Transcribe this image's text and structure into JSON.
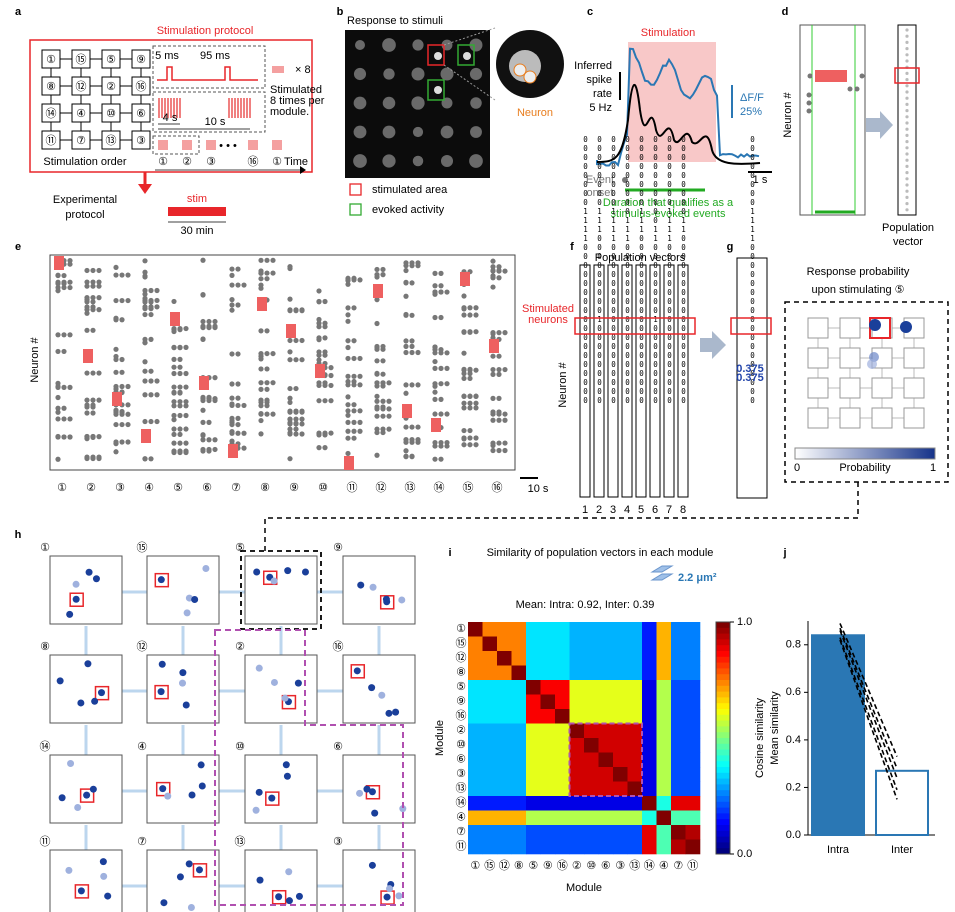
{
  "panel_a": {
    "label": "a",
    "title": "Stimulation protocol",
    "grid": [
      "①",
      "⑮",
      "⑤",
      "⑨",
      "⑧",
      "⑫",
      "②",
      "⑯",
      "⑭",
      "④",
      "⑩",
      "⑥",
      "⑪",
      "⑦",
      "⑬",
      "③"
    ],
    "pulse_width": "5 ms",
    "pulse_gap": "95 ms",
    "repeat": "× 8",
    "repeat_note": [
      "Stimulated",
      "8 times per",
      "module."
    ],
    "train_gap": "4 s",
    "train_period": "10 s",
    "order_label": "Stimulation order",
    "sequence": [
      "①",
      "②",
      "③",
      "⑯",
      "①"
    ],
    "time": "Time",
    "experimental": [
      "Experimental",
      "protocol"
    ],
    "stim": "stim",
    "duration": "30 min"
  },
  "panel_b": {
    "label": "b",
    "title": "Response to stimuli",
    "neuron": "Neuron",
    "legend": [
      "stimulated area",
      "evoked activity"
    ]
  },
  "panel_c": {
    "label": "c",
    "title": "Stimulation",
    "spike_label": [
      "Inferred",
      "spike",
      "rate",
      "5 Hz"
    ],
    "dff_label": [
      "ΔF/F",
      "25%"
    ],
    "time_bar": "1 s",
    "onset": [
      "Event",
      "onset"
    ],
    "duration_note": [
      "Duration that qualifies as a",
      "stimulus-evoked events"
    ]
  },
  "panel_d": {
    "label": "d",
    "ylabel": "Neuron #",
    "vector_label": [
      "Population",
      "vector"
    ]
  },
  "panel_e": {
    "label": "e",
    "ylabel": "Neuron #",
    "modules": [
      "①",
      "②",
      "③",
      "④",
      "⑤",
      "⑥",
      "⑦",
      "⑧",
      "⑨",
      "⑩",
      "⑪",
      "⑫",
      "⑬",
      "⑭",
      "⑮",
      "⑯"
    ],
    "time_bar": "10 s"
  },
  "panel_f": {
    "label": "f",
    "title": "Population vectors",
    "stimulated": [
      "Stimulated",
      "neurons"
    ],
    "ylabel": "Neuron #",
    "vectors": [
      "000000001111000000000000000000",
      "000000001110000000001000000000",
      "000000001111000000000000000000",
      "000000000111000000000000000000",
      "000000001110000000000000000000",
      "000000000011000000001000000000",
      "000000001111000000000000000000",
      "000000000110000000000000000000"
    ],
    "columns": [
      "1",
      "2",
      "3",
      "4",
      "5",
      "6",
      "7",
      "8"
    ]
  },
  "panel_g": {
    "label": "g",
    "vector": "000000001111000000000000000000",
    "probabilities": [
      "0.375",
      "0.375"
    ],
    "title": [
      "Response probability",
      "upon stimulating ⑤"
    ],
    "colorbar": [
      "0",
      "Probability",
      "1"
    ]
  },
  "panel_h": {
    "label": "h",
    "modules": [
      "①",
      "⑮",
      "⑤",
      "⑨",
      "⑧",
      "⑫",
      "②",
      "⑯",
      "⑭",
      "④",
      "⑩",
      "⑥",
      "⑪",
      "⑦",
      "⑬",
      "③"
    ]
  },
  "panel_i": {
    "label": "i",
    "title": "Similarity of population vectors in each module",
    "area": "2.2 μm²",
    "mean": "Mean: Intra: 0.92, Inter: 0.39",
    "xlabel": "Module",
    "ylabel": "Module",
    "colorbar_label": "Cosine similarity",
    "colorbar_ticks": [
      {
        "value": 1,
        "label": "1.0"
      },
      {
        "value": 0,
        "label": "0.0"
      }
    ],
    "modules": [
      "①",
      "⑮",
      "⑫",
      "⑧",
      "⑤",
      "⑨",
      "⑯",
      "②",
      "⑩",
      "⑥",
      "③",
      "⑬",
      "⑭",
      "④",
      "⑦",
      "⑪"
    ],
    "matrix": [
      [
        1,
        0.75,
        0.75,
        0.75,
        0.35,
        0.35,
        0.35,
        0.3,
        0.3,
        0.3,
        0.3,
        0.3,
        0.15,
        0.7,
        0.25,
        0.25
      ],
      [
        0.75,
        1,
        0.75,
        0.75,
        0.35,
        0.35,
        0.35,
        0.3,
        0.3,
        0.3,
        0.3,
        0.3,
        0.15,
        0.7,
        0.25,
        0.25
      ],
      [
        0.75,
        0.75,
        1,
        0.75,
        0.35,
        0.35,
        0.35,
        0.3,
        0.3,
        0.3,
        0.3,
        0.3,
        0.15,
        0.7,
        0.25,
        0.25
      ],
      [
        0.75,
        0.75,
        0.75,
        1,
        0.35,
        0.35,
        0.35,
        0.3,
        0.3,
        0.3,
        0.3,
        0.3,
        0.15,
        0.7,
        0.25,
        0.25
      ],
      [
        0.35,
        0.35,
        0.35,
        0.35,
        1,
        0.88,
        0.88,
        0.6,
        0.6,
        0.6,
        0.6,
        0.6,
        0.1,
        0.55,
        0.2,
        0.2
      ],
      [
        0.35,
        0.35,
        0.35,
        0.35,
        0.88,
        1,
        0.88,
        0.6,
        0.6,
        0.6,
        0.6,
        0.6,
        0.1,
        0.55,
        0.2,
        0.2
      ],
      [
        0.35,
        0.35,
        0.35,
        0.35,
        0.88,
        0.88,
        1,
        0.6,
        0.6,
        0.6,
        0.6,
        0.6,
        0.1,
        0.55,
        0.2,
        0.2
      ],
      [
        0.3,
        0.3,
        0.3,
        0.3,
        0.6,
        0.6,
        0.6,
        1,
        0.92,
        0.92,
        0.92,
        0.92,
        0.1,
        0.55,
        0.2,
        0.2
      ],
      [
        0.3,
        0.3,
        0.3,
        0.3,
        0.6,
        0.6,
        0.6,
        0.92,
        1,
        0.92,
        0.92,
        0.92,
        0.1,
        0.55,
        0.2,
        0.2
      ],
      [
        0.3,
        0.3,
        0.3,
        0.3,
        0.6,
        0.6,
        0.6,
        0.92,
        0.92,
        1,
        0.92,
        0.92,
        0.1,
        0.55,
        0.2,
        0.2
      ],
      [
        0.3,
        0.3,
        0.3,
        0.3,
        0.6,
        0.6,
        0.6,
        0.92,
        0.92,
        0.92,
        1,
        0.92,
        0.1,
        0.55,
        0.2,
        0.2
      ],
      [
        0.3,
        0.3,
        0.3,
        0.3,
        0.6,
        0.6,
        0.6,
        0.92,
        0.92,
        0.92,
        0.92,
        1,
        0.1,
        0.55,
        0.2,
        0.2
      ],
      [
        0.15,
        0.15,
        0.15,
        0.15,
        0.1,
        0.1,
        0.1,
        0.1,
        0.1,
        0.1,
        0.1,
        0.1,
        1,
        0.4,
        0.9,
        0.9
      ],
      [
        0.7,
        0.7,
        0.7,
        0.7,
        0.55,
        0.55,
        0.55,
        0.55,
        0.55,
        0.55,
        0.55,
        0.55,
        0.4,
        1,
        0.45,
        0.45
      ],
      [
        0.25,
        0.25,
        0.25,
        0.25,
        0.2,
        0.2,
        0.2,
        0.2,
        0.2,
        0.2,
        0.2,
        0.2,
        0.9,
        0.45,
        1,
        0.95
      ],
      [
        0.25,
        0.25,
        0.25,
        0.25,
        0.2,
        0.2,
        0.2,
        0.2,
        0.2,
        0.2,
        0.2,
        0.2,
        0.9,
        0.45,
        0.95,
        1
      ]
    ]
  },
  "panel_j": {
    "label": "j",
    "type": "bar",
    "ylabel": "Mean similarity",
    "categories": [
      "Intra",
      "Inter"
    ],
    "values": [
      0.84,
      0.27
    ],
    "colors": [
      "#2a77b4",
      "#ffffff"
    ],
    "ylim": [
      0,
      0.9
    ],
    "yticks": [
      {
        "value": 0,
        "label": "0.0"
      },
      0.2,
      0.4,
      0.6,
      0.8
    ],
    "lines": [
      [
        0.89,
        0.33
      ],
      [
        0.87,
        0.28
      ],
      [
        0.86,
        0.24
      ],
      [
        0.83,
        0.19
      ],
      [
        0.82,
        0.15
      ]
    ]
  }
}
